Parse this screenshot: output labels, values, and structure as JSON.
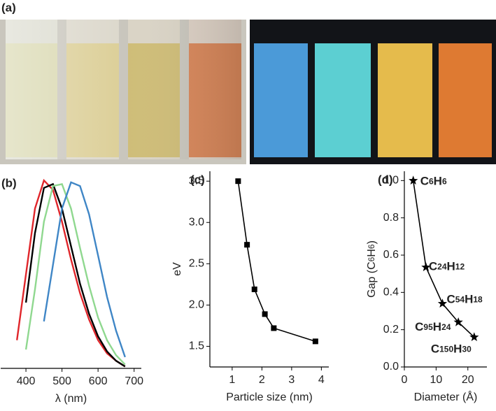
{
  "figure": {
    "panel_a": {
      "label": "(a)"
    }
  },
  "chart_data": [
    {
      "type": "line",
      "title": "(b)",
      "xlabel": "λ (nm)",
      "x": [
        375,
        400,
        425,
        450,
        475,
        500,
        525,
        550,
        575,
        600,
        625,
        650,
        675
      ],
      "xlim": [
        330,
        720
      ],
      "xticks": [
        400,
        500,
        600,
        700
      ],
      "ylim": [
        0,
        1.03
      ],
      "series": [
        {
          "color": "#e0262b",
          "values": [
            0.15,
            0.5,
            0.85,
            1.0,
            0.95,
            0.78,
            0.58,
            0.4,
            0.26,
            0.15,
            0.08,
            0.04,
            0.01
          ]
        },
        {
          "color": "#000000",
          "values": [
            null,
            0.35,
            0.72,
            0.96,
            0.98,
            0.85,
            0.65,
            0.45,
            0.29,
            0.17,
            0.09,
            0.04,
            0.01
          ]
        },
        {
          "color": "#8fd88f",
          "values": [
            null,
            0.1,
            0.42,
            0.78,
            0.97,
            0.98,
            0.85,
            0.64,
            0.44,
            0.27,
            0.15,
            0.07,
            0.02
          ]
        },
        {
          "color": "#3f86c6",
          "values": [
            null,
            null,
            null,
            0.25,
            0.55,
            0.85,
            0.99,
            0.97,
            0.82,
            0.6,
            0.38,
            0.2,
            0.06
          ]
        }
      ]
    },
    {
      "type": "line",
      "title": "(c)",
      "xlabel": "Particle size (nm)",
      "ylabel": "eV",
      "marker": "square",
      "x": [
        1.2,
        1.5,
        1.75,
        2.1,
        2.4,
        3.8
      ],
      "xlim": [
        0.25,
        4.25
      ],
      "xticks": [
        1,
        2,
        3,
        4
      ],
      "ylim": [
        1.25,
        3.62
      ],
      "yticks": [
        1.5,
        {
          "value": 2,
          "label": "2.0"
        },
        2.5,
        {
          "value": 3,
          "label": "3.0"
        },
        3.5
      ],
      "series": [
        {
          "color": "#000000",
          "values": [
            3.5,
            2.73,
            2.19,
            1.89,
            1.72,
            1.56
          ]
        }
      ]
    },
    {
      "type": "line",
      "title": "(d)",
      "xlabel": "Diameter (Å)",
      "ylabel": "Gap (C6H6)",
      "marker": "star",
      "x": [
        2.8,
        6.8,
        12,
        17,
        22
      ],
      "xlim": [
        0,
        26
      ],
      "xticks": [
        0,
        10,
        20
      ],
      "ylim": [
        0,
        1.05
      ],
      "yticks": [
        {
          "value": 0,
          "label": "0.0"
        },
        0.2,
        0.4,
        0.6,
        0.8,
        {
          "value": 1,
          "label": "1.0"
        }
      ],
      "series": [
        {
          "color": "#000000",
          "values": [
            1.0,
            0.535,
            0.34,
            0.24,
            0.16
          ],
          "point_labels": [
            "C6H6",
            "C24H12",
            "C54H18",
            "C95H24",
            "C150H30"
          ]
        }
      ]
    }
  ]
}
